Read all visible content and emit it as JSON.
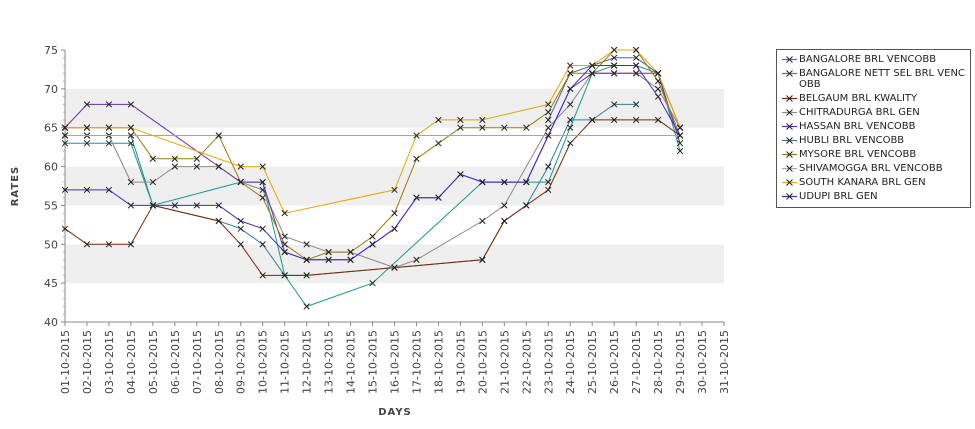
{
  "chart_data": {
    "type": "line",
    "xlabel": "DAYS",
    "ylabel": "RATES",
    "ylim": [
      40,
      75
    ],
    "yticks": [
      "40",
      "45",
      "50",
      "55",
      "60",
      "65",
      "70",
      "75"
    ],
    "categories": [
      "01-10-2015",
      "02-10-2015",
      "03-10-2015",
      "04-10-2015",
      "05-10-2015",
      "06-10-2015",
      "07-10-2015",
      "08-10-2015",
      "09-10-2015",
      "10-10-2015",
      "11-10-2015",
      "12-10-2015",
      "13-10-2015",
      "14-10-2015",
      "15-10-2015",
      "16-10-2015",
      "17-10-2015",
      "18-10-2015",
      "19-10-2015",
      "20-10-2015",
      "21-10-2015",
      "22-10-2015",
      "23-10-2015",
      "24-10-2015",
      "25-10-2015",
      "26-10-2015",
      "27-10-2015",
      "28-10-2015",
      "29-10-2015",
      "30-10-2015",
      "31-10-2015"
    ],
    "grid": "horizontal alternating bands",
    "legend_position": "right",
    "series": [
      {
        "name": "BANGALORE BRL VENCOBB",
        "color": "#2f7f9f",
        "points": [
          [
            0,
            64
          ],
          [
            1,
            64
          ],
          [
            2,
            64
          ],
          [
            3,
            64
          ],
          [
            4,
            55
          ],
          [
            7,
            53
          ],
          [
            8,
            52
          ],
          [
            9,
            50
          ],
          [
            10,
            46
          ],
          [
            11,
            46
          ],
          [
            15,
            47
          ],
          [
            19,
            48
          ],
          [
            20,
            53
          ],
          [
            21,
            55
          ],
          [
            22,
            60
          ],
          [
            23,
            66
          ],
          [
            24,
            66
          ],
          [
            25,
            68
          ],
          [
            26,
            68
          ]
        ]
      },
      {
        "name": "BANGALORE NETT SEL BRL VENCOBB",
        "color": "#1a9a8a",
        "points": [
          [
            0,
            63
          ],
          [
            1,
            63
          ],
          [
            2,
            63
          ],
          [
            3,
            63
          ],
          [
            4,
            55
          ],
          [
            8,
            58
          ],
          [
            9,
            58
          ],
          [
            10,
            46
          ],
          [
            11,
            42
          ],
          [
            14,
            45
          ],
          [
            19,
            58
          ],
          [
            20,
            58
          ],
          [
            21,
            58
          ],
          [
            22,
            58
          ],
          [
            23,
            65
          ],
          [
            24,
            72
          ],
          [
            25,
            73
          ],
          [
            26,
            73
          ],
          [
            27,
            72
          ],
          [
            28,
            62
          ]
        ]
      },
      {
        "name": "BELGAUM BRL KWALITY",
        "color": "#7a2a00",
        "points": [
          [
            0,
            52
          ],
          [
            1,
            50
          ],
          [
            2,
            50
          ],
          [
            3,
            50
          ],
          [
            4,
            55
          ],
          [
            7,
            53
          ],
          [
            8,
            50
          ],
          [
            9,
            46
          ],
          [
            10,
            46
          ],
          [
            11,
            46
          ],
          [
            15,
            47
          ],
          [
            19,
            48
          ],
          [
            20,
            53
          ],
          [
            21,
            55
          ],
          [
            22,
            57
          ],
          [
            23,
            63
          ],
          [
            24,
            66
          ],
          [
            25,
            66
          ],
          [
            26,
            66
          ],
          [
            27,
            66
          ],
          [
            28,
            64
          ]
        ]
      },
      {
        "name": "CHITRADURGA BRL GEN",
        "color": "#8a8a8a",
        "points": [
          [
            0,
            64
          ],
          [
            1,
            64
          ],
          [
            2,
            64
          ],
          [
            3,
            58
          ],
          [
            4,
            58
          ],
          [
            5,
            60
          ],
          [
            6,
            60
          ],
          [
            7,
            60
          ],
          [
            8,
            58
          ],
          [
            9,
            57
          ],
          [
            10,
            51
          ],
          [
            11,
            50
          ],
          [
            12,
            49
          ],
          [
            13,
            49
          ],
          [
            15,
            47
          ],
          [
            16,
            48
          ],
          [
            19,
            53
          ],
          [
            20,
            55
          ],
          [
            22,
            65
          ],
          [
            23,
            68
          ],
          [
            24,
            72
          ],
          [
            25,
            72
          ],
          [
            26,
            72
          ],
          [
            27,
            70
          ],
          [
            28,
            65
          ]
        ]
      },
      {
        "name": "HASSAN BRL VENCOBB",
        "color": "#6a2ab0",
        "points": [
          [
            0,
            65
          ],
          [
            1,
            68
          ],
          [
            2,
            68
          ],
          [
            3,
            68
          ],
          [
            7,
            60
          ],
          [
            8,
            58
          ],
          [
            9,
            58
          ],
          [
            10,
            49
          ],
          [
            11,
            48
          ],
          [
            12,
            48
          ],
          [
            13,
            48
          ],
          [
            14,
            50
          ],
          [
            15,
            52
          ],
          [
            16,
            56
          ],
          [
            17,
            56
          ],
          [
            18,
            59
          ],
          [
            19,
            58
          ],
          [
            20,
            58
          ],
          [
            21,
            58
          ],
          [
            22,
            64
          ],
          [
            23,
            70
          ],
          [
            24,
            72
          ],
          [
            25,
            72
          ],
          [
            26,
            72
          ],
          [
            27,
            72
          ],
          [
            28,
            63
          ]
        ]
      },
      {
        "name": "HUBLI BRL VENCOBB",
        "color": "#4a6a9a",
        "points": [
          [
            22,
            66
          ],
          [
            23,
            72
          ],
          [
            24,
            73
          ],
          [
            25,
            74
          ],
          [
            26,
            74
          ],
          [
            27,
            72
          ],
          [
            28,
            65
          ]
        ]
      },
      {
        "name": "MYSORE BRL VENCOBB",
        "color": "#9a7a10",
        "points": [
          [
            0,
            65
          ],
          [
            1,
            65
          ],
          [
            2,
            65
          ],
          [
            3,
            65
          ],
          [
            4,
            61
          ],
          [
            5,
            61
          ],
          [
            6,
            61
          ],
          [
            7,
            64
          ],
          [
            8,
            58
          ],
          [
            9,
            56
          ],
          [
            10,
            50
          ],
          [
            11,
            48
          ],
          [
            12,
            49
          ],
          [
            13,
            49
          ],
          [
            14,
            51
          ],
          [
            15,
            54
          ],
          [
            16,
            61
          ],
          [
            17,
            63
          ],
          [
            18,
            65
          ],
          [
            19,
            65
          ],
          [
            20,
            65
          ],
          [
            21,
            65
          ],
          [
            22,
            67
          ],
          [
            23,
            72
          ],
          [
            24,
            72
          ],
          [
            25,
            75
          ],
          [
            26,
            75
          ],
          [
            27,
            71
          ],
          [
            28,
            64
          ]
        ]
      },
      {
        "name": "SHIVAMOGGA BRL VENCOBB",
        "color": "#a0a8a8",
        "points": [
          [
            0,
            64
          ],
          [
            3,
            64
          ],
          [
            7,
            64
          ],
          [
            28,
            64
          ]
        ]
      },
      {
        "name": "SOUTH KANARA BRL GEN",
        "color": "#e0a800",
        "points": [
          [
            0,
            65
          ],
          [
            1,
            65
          ],
          [
            2,
            65
          ],
          [
            3,
            65
          ],
          [
            8,
            60
          ],
          [
            9,
            60
          ],
          [
            10,
            54
          ],
          [
            15,
            57
          ],
          [
            16,
            64
          ],
          [
            17,
            66
          ],
          [
            18,
            66
          ],
          [
            19,
            66
          ],
          [
            22,
            68
          ],
          [
            23,
            73
          ],
          [
            24,
            73
          ],
          [
            25,
            75
          ],
          [
            26,
            75
          ],
          [
            27,
            72
          ],
          [
            28,
            65
          ]
        ]
      },
      {
        "name": "UDUPI BRL GEN",
        "color": "#3a2ad0",
        "points": [
          [
            0,
            57
          ],
          [
            1,
            57
          ],
          [
            2,
            57
          ],
          [
            3,
            55
          ],
          [
            4,
            55
          ],
          [
            5,
            55
          ],
          [
            6,
            55
          ],
          [
            7,
            55
          ],
          [
            8,
            53
          ],
          [
            9,
            52
          ],
          [
            10,
            49
          ],
          [
            11,
            48
          ],
          [
            12,
            48
          ],
          [
            13,
            48
          ],
          [
            14,
            50
          ],
          [
            15,
            52
          ],
          [
            16,
            56
          ],
          [
            17,
            56
          ],
          [
            18,
            59
          ],
          [
            19,
            58
          ],
          [
            20,
            58
          ],
          [
            21,
            58
          ],
          [
            22,
            64
          ],
          [
            23,
            70
          ],
          [
            24,
            73
          ],
          [
            25,
            73
          ],
          [
            26,
            73
          ],
          [
            27,
            69
          ],
          [
            28,
            64
          ]
        ]
      }
    ]
  }
}
